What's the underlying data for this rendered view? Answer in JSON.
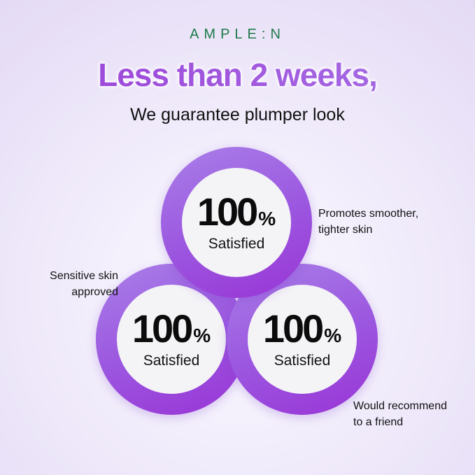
{
  "brand": "AMPLE:N",
  "headline": "Less than 2 weeks,",
  "subheadline": "We guarantee plumper look",
  "colors": {
    "brand": "#1f7a4c",
    "accent": "#9b3fd6"
  },
  "stats": [
    {
      "value": "100",
      "unit": "%",
      "label": "Satisfied",
      "note": [
        "Promotes smoother,",
        "tighter skin"
      ]
    },
    {
      "value": "100",
      "unit": "%",
      "label": "Satisfied",
      "note": [
        "Sensitive skin",
        "approved"
      ]
    },
    {
      "value": "100",
      "unit": "%",
      "label": "Satisfied",
      "note": [
        "Would recommend",
        "to a friend"
      ]
    }
  ]
}
